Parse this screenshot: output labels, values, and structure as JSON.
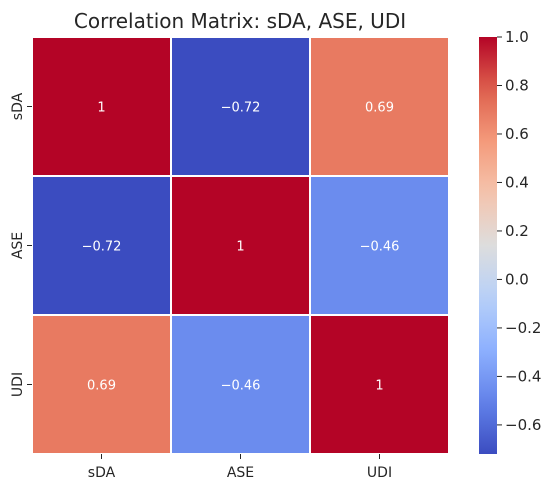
{
  "chart_data": {
    "type": "heatmap",
    "title": "Correlation Matrix: sDA, ASE, UDI",
    "x_categories": [
      "sDA",
      "ASE",
      "UDI"
    ],
    "y_categories": [
      "sDA",
      "ASE",
      "UDI"
    ],
    "values": [
      [
        1,
        -0.72,
        0.69
      ],
      [
        -0.72,
        1,
        -0.46
      ],
      [
        0.69,
        -0.46,
        1
      ]
    ],
    "cell_labels": [
      [
        "1",
        "−0.72",
        "0.69"
      ],
      [
        "−0.72",
        "1",
        "−0.46"
      ],
      [
        "0.69",
        "−0.46",
        "1"
      ]
    ],
    "colormap": "coolwarm",
    "colorbar": {
      "vmin": -0.72,
      "vmax": 1.0,
      "ticks": [
        1.0,
        0.8,
        0.6,
        0.4,
        0.2,
        0.0,
        -0.2,
        -0.4,
        -0.6
      ],
      "tick_labels": [
        "1.0",
        "0.8",
        "0.6",
        "0.4",
        "0.2",
        "0.0",
        "−0.2",
        "−0.4",
        "−0.6"
      ]
    },
    "grid_line_color": "#ffffff"
  }
}
